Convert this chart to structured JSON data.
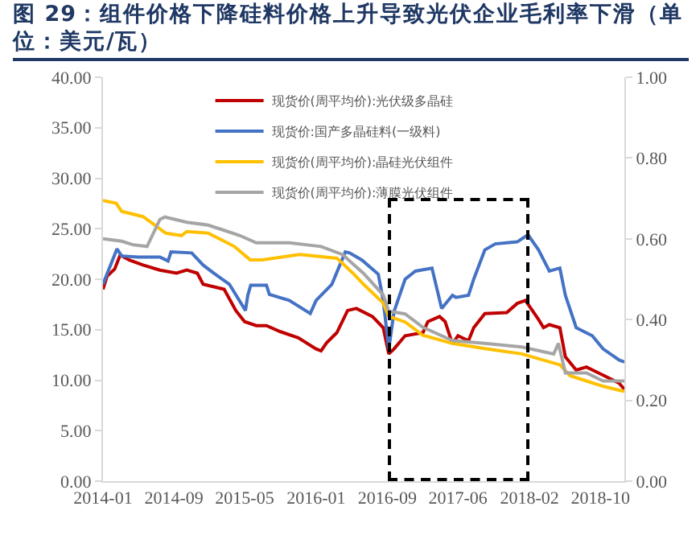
{
  "chart_data": {
    "type": "line",
    "title": "图 29：组件价格下降硅料价格上升导致光伏企业毛利率下滑（单位：美元/瓦）",
    "xlim": [
      "2014-01-01",
      "2018-11-22"
    ],
    "xticks": [
      {
        "value": "2014-01-01",
        "label": "2014-01"
      },
      {
        "value": "2014-09-01",
        "label": "2014-09"
      },
      {
        "value": "2015-05-01",
        "label": "2015-05"
      },
      {
        "value": "2016-01-01",
        "label": "2016-01"
      },
      {
        "value": "2016-09-01",
        "label": "2016-09"
      },
      {
        "value": "2017-05-01",
        "label": "2017-06"
      },
      {
        "value": "2018-01-01",
        "label": "2018-02"
      },
      {
        "value": "2018-09-01",
        "label": "2018-10"
      }
    ],
    "ylim": [
      0,
      40
    ],
    "yticks": [
      {
        "value": 0,
        "label": "0.00"
      },
      {
        "value": 5,
        "label": "5.00"
      },
      {
        "value": 10,
        "label": "10.00"
      },
      {
        "value": 15,
        "label": "15.00"
      },
      {
        "value": 20,
        "label": "20.00"
      },
      {
        "value": 25,
        "label": "25.00"
      },
      {
        "value": 30,
        "label": "30.00"
      },
      {
        "value": 35,
        "label": "35.00"
      },
      {
        "value": 40,
        "label": "40.00"
      }
    ],
    "y2lim": [
      0,
      1
    ],
    "y2ticks": [
      {
        "value": 0,
        "label": "0.00"
      },
      {
        "value": 0.2,
        "label": "0.20"
      },
      {
        "value": 0.4,
        "label": "0.40"
      },
      {
        "value": 0.6,
        "label": "0.60"
      },
      {
        "value": 0.8,
        "label": "0.80"
      },
      {
        "value": 1,
        "label": "1.00"
      }
    ],
    "grid": false,
    "legend": "top",
    "marker": "none",
    "line_style": "solid",
    "series": [
      {
        "name": "现货价(周平均价):光伏级多晶硅",
        "color": "#c00000",
        "axis": "y",
        "x": [
          "2014-01-01",
          "2014-01-15",
          "2014-02-10",
          "2014-03-01",
          "2014-04-01",
          "2014-05-18",
          "2014-07-15",
          "2014-09-10",
          "2014-10-15",
          "2014-11-20",
          "2014-12-10",
          "2015-02-20",
          "2015-04-01",
          "2015-05-01",
          "2015-06-10",
          "2015-07-15",
          "2015-09-01",
          "2015-11-01",
          "2016-01-01",
          "2016-01-18",
          "2016-02-06",
          "2016-03-12",
          "2016-04-18",
          "2016-05-18",
          "2016-07-12",
          "2016-08-18",
          "2016-09-06",
          "2016-09-24",
          "2016-11-01",
          "2017-01-01",
          "2017-01-18",
          "2017-02-27",
          "2017-03-18",
          "2017-04-12",
          "2017-05-01",
          "2017-06-06",
          "2017-06-24",
          "2017-08-01",
          "2017-10-15",
          "2017-11-20",
          "2017-12-18",
          "2018-01-06",
          "2018-02-01",
          "2018-02-18",
          "2018-03-10",
          "2018-04-15",
          "2018-05-04",
          "2018-06-10",
          "2018-07-15",
          "2018-09-10",
          "2018-11-04",
          "2018-11-22"
        ],
        "values": [
          19.0,
          20.3,
          21.0,
          22.4,
          21.9,
          21.4,
          20.9,
          20.6,
          20.9,
          20.6,
          19.5,
          19.0,
          16.9,
          15.8,
          15.4,
          15.4,
          14.8,
          14.2,
          13.1,
          12.9,
          13.7,
          14.7,
          16.9,
          17.1,
          16.3,
          15.2,
          12.6,
          13.1,
          14.4,
          14.7,
          15.8,
          16.3,
          15.8,
          13.6,
          14.4,
          13.9,
          15.2,
          16.6,
          16.7,
          17.6,
          17.9,
          17.1,
          16.0,
          15.2,
          15.5,
          15.2,
          12.3,
          11.0,
          11.3,
          10.5,
          9.7,
          9.1
        ]
      },
      {
        "name": "现货价:国产多晶硅料(一级料)",
        "color": "#4472c4",
        "axis": "y",
        "x": [
          "2014-01-01",
          "2014-02-18",
          "2014-03-06",
          "2014-05-01",
          "2014-07-15",
          "2014-08-12",
          "2014-08-22",
          "2014-11-01",
          "2014-12-10",
          "2015-01-15",
          "2015-03-10",
          "2015-05-04",
          "2015-05-12",
          "2015-05-22",
          "2015-07-15",
          "2015-07-25",
          "2015-10-01",
          "2015-12-12",
          "2016-01-01",
          "2016-02-24",
          "2016-04-10",
          "2016-04-25",
          "2016-06-06",
          "2016-08-01",
          "2016-08-18",
          "2016-09-06",
          "2016-09-24",
          "2016-11-01",
          "2016-12-06",
          "2017-02-01",
          "2017-03-06",
          "2017-04-12",
          "2017-04-24",
          "2017-06-06",
          "2017-06-24",
          "2017-08-01",
          "2017-09-06",
          "2017-11-20",
          "2017-12-27",
          "2018-02-01",
          "2018-03-10",
          "2018-04-15",
          "2018-05-04",
          "2018-06-10",
          "2018-08-04",
          "2018-09-10",
          "2018-11-04",
          "2018-11-22"
        ],
        "values": [
          19.5,
          23.0,
          22.3,
          22.2,
          22.2,
          21.8,
          22.7,
          22.6,
          21.4,
          20.6,
          19.5,
          16.9,
          18.4,
          19.4,
          19.4,
          18.5,
          17.9,
          16.6,
          17.9,
          19.5,
          22.7,
          22.6,
          21.9,
          20.5,
          17.9,
          13.1,
          16.8,
          20.0,
          20.8,
          21.1,
          17.1,
          18.4,
          18.2,
          18.4,
          20.0,
          22.9,
          23.5,
          23.7,
          24.4,
          22.9,
          20.8,
          21.1,
          18.4,
          15.2,
          14.4,
          13.1,
          12.0,
          11.8
        ]
      },
      {
        "name": "现货价(周平均价):晶硅光伏组件",
        "color": "#ffc000",
        "axis": "y2",
        "x": [
          "2014-01-01",
          "2014-02-15",
          "2014-03-06",
          "2014-05-18",
          "2014-06-27",
          "2014-08-04",
          "2014-09-27",
          "2014-10-15",
          "2014-12-27",
          "2015-02-20",
          "2015-03-27",
          "2015-05-20",
          "2015-07-01",
          "2015-11-06",
          "2016-03-12",
          "2016-05-06",
          "2016-06-12",
          "2016-08-18",
          "2016-09-06",
          "2016-11-01",
          "2017-01-01",
          "2017-04-12",
          "2017-08-01",
          "2017-12-06",
          "2018-04-15",
          "2018-05-20",
          "2018-07-15",
          "2018-09-10",
          "2018-11-22"
        ],
        "values": [
          0.695,
          0.688,
          0.668,
          0.655,
          0.634,
          0.614,
          0.608,
          0.618,
          0.614,
          0.594,
          0.581,
          0.548,
          0.548,
          0.561,
          0.552,
          0.515,
          0.487,
          0.441,
          0.408,
          0.394,
          0.361,
          0.341,
          0.328,
          0.315,
          0.288,
          0.261,
          0.248,
          0.235,
          0.222
        ]
      },
      {
        "name": "现货价(周平均价):薄膜光伏组件",
        "color": "#a5a5a5",
        "axis": "y2",
        "x": [
          "2014-01-01",
          "2014-03-06",
          "2014-04-15",
          "2014-06-01",
          "2014-07-15",
          "2014-08-01",
          "2014-10-15",
          "2014-12-27",
          "2015-02-20",
          "2015-04-15",
          "2015-06-10",
          "2015-10-01",
          "2016-01-18",
          "2016-04-01",
          "2016-05-06",
          "2016-06-12",
          "2016-08-18",
          "2016-09-06",
          "2016-11-01",
          "2017-01-01",
          "2017-04-12",
          "2017-08-01",
          "2017-12-06",
          "2018-03-25",
          "2018-04-10",
          "2018-05-04",
          "2018-07-15",
          "2018-09-10",
          "2018-11-22"
        ],
        "values": [
          0.6,
          0.594,
          0.585,
          0.581,
          0.648,
          0.654,
          0.641,
          0.634,
          0.621,
          0.608,
          0.59,
          0.59,
          0.581,
          0.561,
          0.538,
          0.514,
          0.461,
          0.421,
          0.414,
          0.381,
          0.348,
          0.341,
          0.332,
          0.315,
          0.341,
          0.268,
          0.268,
          0.248,
          0.248
        ]
      }
    ]
  }
}
